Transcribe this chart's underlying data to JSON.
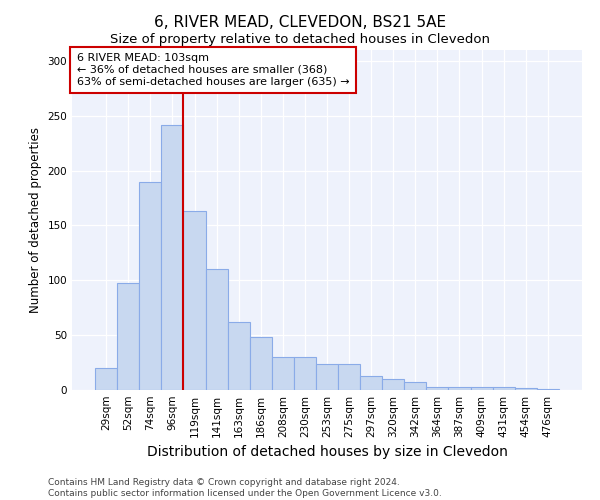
{
  "title": "6, RIVER MEAD, CLEVEDON, BS21 5AE",
  "subtitle": "Size of property relative to detached houses in Clevedon",
  "xlabel": "Distribution of detached houses by size in Clevedon",
  "ylabel": "Number of detached properties",
  "categories": [
    "29sqm",
    "52sqm",
    "74sqm",
    "96sqm",
    "119sqm",
    "141sqm",
    "163sqm",
    "186sqm",
    "208sqm",
    "230sqm",
    "253sqm",
    "275sqm",
    "297sqm",
    "320sqm",
    "342sqm",
    "364sqm",
    "387sqm",
    "409sqm",
    "431sqm",
    "454sqm",
    "476sqm"
  ],
  "values": [
    20,
    98,
    190,
    242,
    163,
    110,
    62,
    48,
    30,
    30,
    24,
    24,
    13,
    10,
    7,
    3,
    3,
    3,
    3,
    2,
    1
  ],
  "bar_color": "#c8d8f0",
  "bar_edge_color": "#8aabe8",
  "red_line_index": 4,
  "annotation_line1": "6 RIVER MEAD: 103sqm",
  "annotation_line2": "← 36% of detached houses are smaller (368)",
  "annotation_line3": "63% of semi-detached houses are larger (635) →",
  "annotation_box_color": "white",
  "annotation_box_edge": "#cc0000",
  "red_line_color": "#cc0000",
  "ylim": [
    0,
    310
  ],
  "yticks": [
    0,
    50,
    100,
    150,
    200,
    250,
    300
  ],
  "footer_line1": "Contains HM Land Registry data © Crown copyright and database right 2024.",
  "footer_line2": "Contains public sector information licensed under the Open Government Licence v3.0.",
  "bg_color": "#eef2fc",
  "title_fontsize": 11,
  "subtitle_fontsize": 9.5,
  "xlabel_fontsize": 10,
  "ylabel_fontsize": 8.5,
  "tick_fontsize": 7.5,
  "annotation_fontsize": 8,
  "footer_fontsize": 6.5
}
